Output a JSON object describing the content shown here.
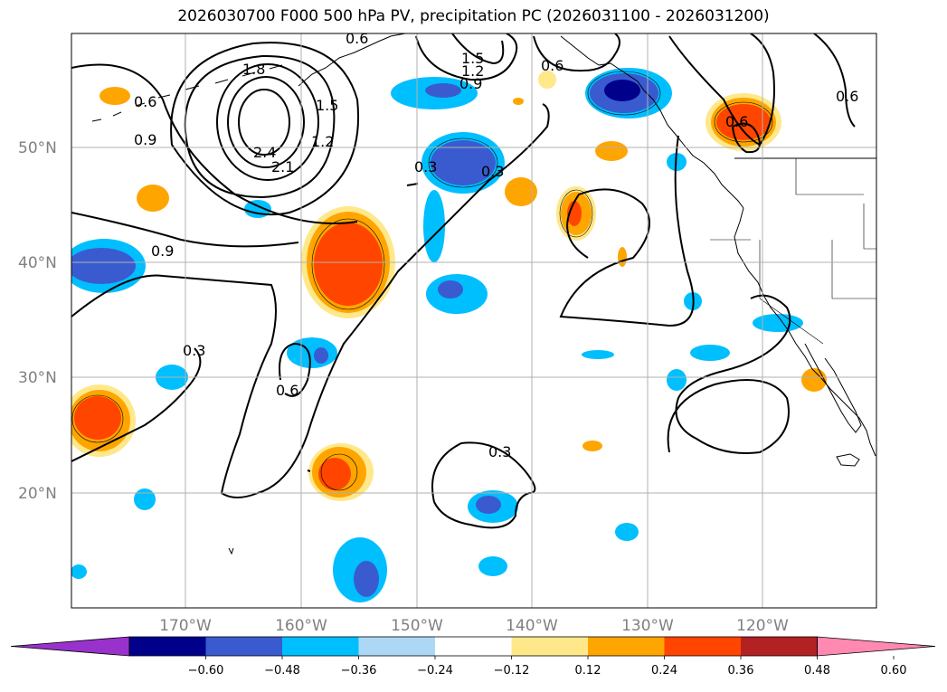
{
  "title": "2026030700 F000 500 hPa PV, precipitation PC (2026031100 - 2026031200)",
  "lat_labels": [
    "50°N",
    "40°N",
    "30°N",
    "20°N"
  ],
  "lon_labels": [
    "170°W",
    "160°W",
    "150°W",
    "140°W",
    "130°W",
    "120°W"
  ],
  "contour_labels": [
    "0.6",
    "1.8",
    "0.6",
    "0.9",
    "2.4",
    "2.1",
    "1.2",
    "1.5",
    "1.5",
    "1.2",
    "0.9",
    "0.6",
    "0.6",
    "0.6",
    "0.3",
    "0.3",
    "0.9",
    "0.3",
    "0.6",
    "0.3"
  ],
  "colorbar": {
    "tick_labels": [
      "−0.60",
      "−0.48",
      "−0.36",
      "−0.24",
      "−0.12",
      "0.12",
      "0.24",
      "0.36",
      "0.48",
      "0.60"
    ],
    "colors": [
      "#9932cc",
      "#00008b",
      "#3a5bd0",
      "#00bfff",
      "#add8f5",
      "#ffffff",
      "#ffe88a",
      "#ffa500",
      "#ff4500",
      "#b22222",
      "#ff89b0"
    ]
  },
  "colors": {
    "neg_strong": "#00008b",
    "neg_mid": "#3a5bd0",
    "neg_light": "#00bfff",
    "neg_faint": "#add8f5",
    "pos_faint": "#ffe88a",
    "pos_light": "#ffa500",
    "pos_mid": "#ff4500"
  }
}
